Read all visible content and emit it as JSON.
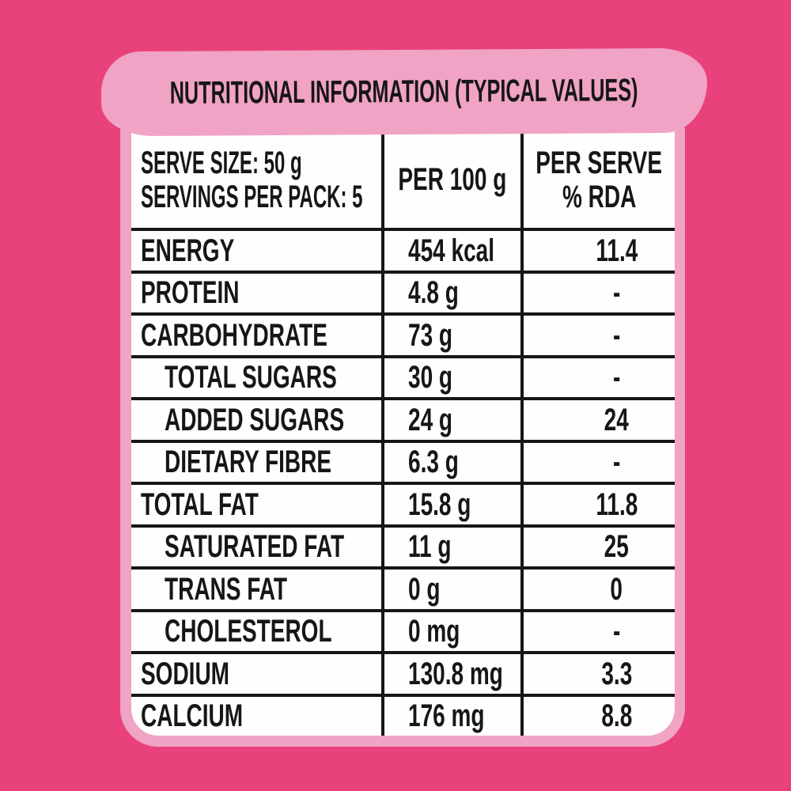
{
  "title": "NUTRITIONAL INFORMATION (TYPICAL VALUES)",
  "table": {
    "header": {
      "col1_line1": "SERVE SIZE: 50 g",
      "col1_line2": "SERVINGS PER PACK: 5",
      "col2": "PER 100 g",
      "col3_line1": "PER SERVE",
      "col3_line2": "% RDA"
    },
    "rows": [
      {
        "label": "ENERGY",
        "per100": "454 kcal",
        "rda": "11.4",
        "indent": false
      },
      {
        "label": "PROTEIN",
        "per100": "4.8 g",
        "rda": "-",
        "indent": false
      },
      {
        "label": "CARBOHYDRATE",
        "per100": "73 g",
        "rda": "-",
        "indent": false
      },
      {
        "label": "TOTAL SUGARS",
        "per100": "30 g",
        "rda": "-",
        "indent": true
      },
      {
        "label": "ADDED SUGARS",
        "per100": "24 g",
        "rda": "24",
        "indent": true
      },
      {
        "label": "DIETARY FIBRE",
        "per100": "6.3 g",
        "rda": "-",
        "indent": true
      },
      {
        "label": "TOTAL FAT",
        "per100": "15.8 g",
        "rda": "11.8",
        "indent": false
      },
      {
        "label": "SATURATED FAT",
        "per100": "11 g",
        "rda": "25",
        "indent": true
      },
      {
        "label": "TRANS FAT",
        "per100": "0 g",
        "rda": "0",
        "indent": true
      },
      {
        "label": "CHOLESTEROL",
        "per100": "0 mg",
        "rda": "-",
        "indent": true
      },
      {
        "label": "SODIUM",
        "per100": "130.8 mg",
        "rda": "3.3",
        "indent": false
      },
      {
        "label": "CALCIUM",
        "per100": "176 mg",
        "rda": "8.8",
        "indent": false
      }
    ]
  },
  "colors": {
    "background": "#e9417b",
    "banner_and_frame": "#f0a3c4",
    "panel": "#fffdfd",
    "text_and_lines": "#161616"
  }
}
